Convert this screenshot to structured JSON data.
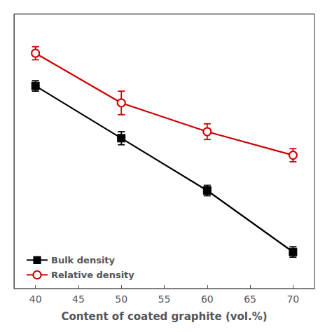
{
  "chart_data": {
    "type": "line",
    "xlabel": "Content of coated graphite (vol.%)",
    "x": [
      40,
      50,
      60,
      70
    ],
    "series": [
      {
        "name": "Bulk density",
        "color": "#000000",
        "marker": "square",
        "values": [
          1.85,
          1.45,
          1.05,
          0.58
        ],
        "yerr": [
          0.04,
          0.05,
          0.04,
          0.04
        ]
      },
      {
        "name": "Relative density",
        "color": "#cc0000",
        "marker": "open_circle",
        "values": [
          2.1,
          1.72,
          1.5,
          1.32
        ],
        "yerr": [
          0.05,
          0.09,
          0.06,
          0.05
        ]
      }
    ],
    "xlim": [
      37.5,
      72.5
    ],
    "xticks": [
      40,
      45,
      50,
      55,
      60,
      65,
      70
    ],
    "ylim": [
      0.3,
      2.4
    ],
    "grid": false,
    "legend": "lower left",
    "tick_labels": "x"
  }
}
